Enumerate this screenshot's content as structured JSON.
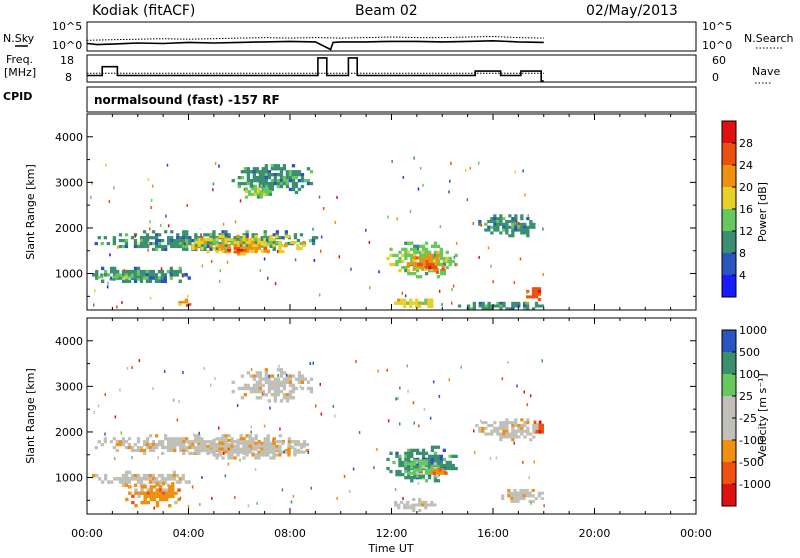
{
  "header": {
    "station": "Kodiak (fitACF)",
    "beam": "Beam 02",
    "date": "02/May/2013"
  },
  "top_panels": {
    "nsky_label": "N.Sky",
    "nsearch_label": "N.Search",
    "freq_label_1": "Freq.",
    "freq_label_2": "[MHz]",
    "nave_label": "Nave",
    "cpid_label": "CPID",
    "cpid_value": "normalsound (fast) -157 RF",
    "noise_ticks": [
      "10^5",
      "10^0"
    ],
    "freq_ticks": [
      "18",
      "8"
    ],
    "nave_ticks": [
      "60",
      "0"
    ]
  },
  "colors": {
    "power": [
      "#1a1aff",
      "#2a55c0",
      "#3a8f70",
      "#66c85e",
      "#e8d028",
      "#f09010",
      "#ee5010",
      "#e01010"
    ],
    "velocity": [
      "#e01010",
      "#f05010",
      "#f09010",
      "#c0c0b8",
      "#c0c0b8",
      "#66c85e",
      "#3a8f70",
      "#2a55c0"
    ]
  },
  "chart_data": [
    {
      "type": "line",
      "name": "noise",
      "x_unit": "hours UT",
      "series": [
        {
          "name": "N.Sky",
          "x": [
            0,
            0.4,
            1,
            2,
            3,
            4,
            5,
            6,
            7,
            8,
            9,
            9.6,
            9.7,
            10,
            11,
            12,
            13,
            14,
            15,
            16,
            17,
            18
          ],
          "log10_y": [
            1.2,
            1.0,
            1.1,
            1.3,
            1.2,
            1.4,
            1.3,
            1.4,
            1.5,
            1.6,
            1.5,
            0.1,
            1.4,
            1.5,
            1.5,
            1.6,
            1.6,
            1.5,
            1.6,
            1.7,
            1.5,
            1.4
          ]
        },
        {
          "name": "N.Search",
          "x": [
            0,
            1,
            2,
            3,
            4,
            5,
            6,
            7,
            8,
            9,
            10,
            11,
            12,
            13,
            14,
            15,
            16,
            17,
            18
          ],
          "log10_y": [
            1.8,
            1.9,
            2.0,
            2.1,
            2.0,
            2.1,
            2.2,
            2.3,
            2.2,
            2.3,
            2.2,
            2.3,
            2.4,
            2.3,
            2.3,
            2.4,
            2.5,
            2.3,
            2.2
          ]
        }
      ],
      "ylim": [
        0,
        5
      ]
    },
    {
      "type": "line",
      "name": "frequency-nave",
      "x_unit": "hours UT",
      "series": [
        {
          "name": "Freq.",
          "unit": "MHz",
          "x": [
            0,
            0.6,
            0.6,
            1.2,
            1.2,
            9.1,
            9.1,
            9.45,
            9.45,
            10.3,
            10.3,
            10.65,
            10.65,
            15.3,
            15.3,
            16.3,
            16.3,
            17.1,
            17.1,
            17.9,
            17.9,
            18
          ],
          "y": [
            10.5,
            10.5,
            14.5,
            14.5,
            10.5,
            10.5,
            18.5,
            18.5,
            10.5,
            10.5,
            18.5,
            18.5,
            10.5,
            10.5,
            12.5,
            12.5,
            10.5,
            10.5,
            12.5,
            12.5,
            8,
            8
          ]
        },
        {
          "name": "Nave",
          "x": [
            0,
            18
          ],
          "y": [
            21,
            21
          ]
        }
      ],
      "ylim_freq": [
        8,
        18
      ],
      "ylim_nave": [
        0,
        60
      ]
    },
    {
      "type": "heatmap",
      "name": "power",
      "ylabel": "Slant Range [km]",
      "colorbar_label": "Power [dB]",
      "colorbar_ticks": [
        "4",
        "8",
        "12",
        "16",
        "20",
        "24",
        "28"
      ],
      "xlim_hours": [
        0,
        24
      ],
      "ylim_km": [
        200,
        4500
      ],
      "y_ticks": [
        "1000",
        "2000",
        "3000",
        "4000"
      ],
      "regions": [
        {
          "t0": 0.3,
          "t1": 9.1,
          "r0": 1500,
          "r1": 1950,
          "level": 2
        },
        {
          "t0": 4.0,
          "t1": 8.6,
          "r0": 1450,
          "r1": 1850,
          "level": 4
        },
        {
          "t0": 5.2,
          "t1": 7.2,
          "r0": 1400,
          "r1": 1650,
          "level": 5
        },
        {
          "t0": 5.4,
          "t1": 6.4,
          "r0": 1450,
          "r1": 1580,
          "level": 6
        },
        {
          "t0": 5.7,
          "t1": 8.9,
          "r0": 2750,
          "r1": 3400,
          "level": 2
        },
        {
          "t0": 6.1,
          "t1": 7.4,
          "r0": 2650,
          "r1": 2950,
          "level": 3
        },
        {
          "t0": 0.2,
          "t1": 4.2,
          "r0": 800,
          "r1": 1150,
          "level": 2
        },
        {
          "t0": 0.4,
          "t1": 2.2,
          "r0": 850,
          "r1": 1000,
          "level": 3
        },
        {
          "t0": 11.8,
          "t1": 14.6,
          "r0": 900,
          "r1": 1700,
          "level": 3
        },
        {
          "t0": 12.6,
          "t1": 14.2,
          "r0": 1000,
          "r1": 1500,
          "level": 5
        },
        {
          "t0": 13.0,
          "t1": 13.8,
          "r0": 1100,
          "r1": 1300,
          "level": 6
        },
        {
          "t0": 12.1,
          "t1": 14.0,
          "r0": 250,
          "r1": 450,
          "level": 4
        },
        {
          "t0": 17.3,
          "t1": 18.0,
          "r0": 400,
          "r1": 700,
          "level": 6
        },
        {
          "t0": 3.6,
          "t1": 4.1,
          "r0": 300,
          "r1": 450,
          "level": 5
        },
        {
          "t0": 15.3,
          "t1": 17.9,
          "r0": 1800,
          "r1": 2300,
          "level": 2
        },
        {
          "t0": 14.5,
          "t1": 18.0,
          "r0": 200,
          "r1": 380,
          "level": 2
        }
      ]
    },
    {
      "type": "heatmap",
      "name": "velocity",
      "ylabel": "Slant Range [km]",
      "colorbar_label": "Velocity [m s⁻¹]",
      "colorbar_ticks": [
        "-1000",
        "-500",
        "-100",
        "-25",
        "25",
        "100",
        "500",
        "1000"
      ],
      "xlabel": "Time UT",
      "x_ticks": [
        "00:00",
        "04:00",
        "08:00",
        "12:00",
        "16:00",
        "20:00",
        "00:00"
      ],
      "xlim_hours": [
        0,
        24
      ],
      "ylim_km": [
        200,
        4500
      ],
      "y_ticks": [
        "1000",
        "2000",
        "3000",
        "4000"
      ],
      "regions": [
        {
          "t0": 0.3,
          "t1": 9.1,
          "r0": 1500,
          "r1": 1950,
          "level": 3
        },
        {
          "t0": 4.0,
          "t1": 8.6,
          "r0": 1400,
          "r1": 1850,
          "level": 3
        },
        {
          "t0": 5.7,
          "t1": 8.9,
          "r0": 2650,
          "r1": 3400,
          "level": 3
        },
        {
          "t0": 0.2,
          "t1": 4.2,
          "r0": 800,
          "r1": 1150,
          "level": 3
        },
        {
          "t0": 1.5,
          "t1": 3.8,
          "r0": 350,
          "r1": 900,
          "level": 2
        },
        {
          "t0": 11.8,
          "t1": 14.6,
          "r0": 900,
          "r1": 1700,
          "level": 6
        },
        {
          "t0": 12.5,
          "t1": 14.0,
          "r0": 1000,
          "r1": 1400,
          "level": 5
        },
        {
          "t0": 13.4,
          "t1": 14.2,
          "r0": 1000,
          "r1": 1200,
          "level": 2
        },
        {
          "t0": 12.1,
          "t1": 14.0,
          "r0": 250,
          "r1": 550,
          "level": 3
        },
        {
          "t0": 16.2,
          "t1": 18.0,
          "r0": 450,
          "r1": 750,
          "level": 3
        },
        {
          "t0": 17.6,
          "t1": 18.0,
          "r0": 1900,
          "r1": 2250,
          "level": 1
        },
        {
          "t0": 15.3,
          "t1": 17.9,
          "r0": 1800,
          "r1": 2300,
          "level": 3
        }
      ]
    }
  ]
}
